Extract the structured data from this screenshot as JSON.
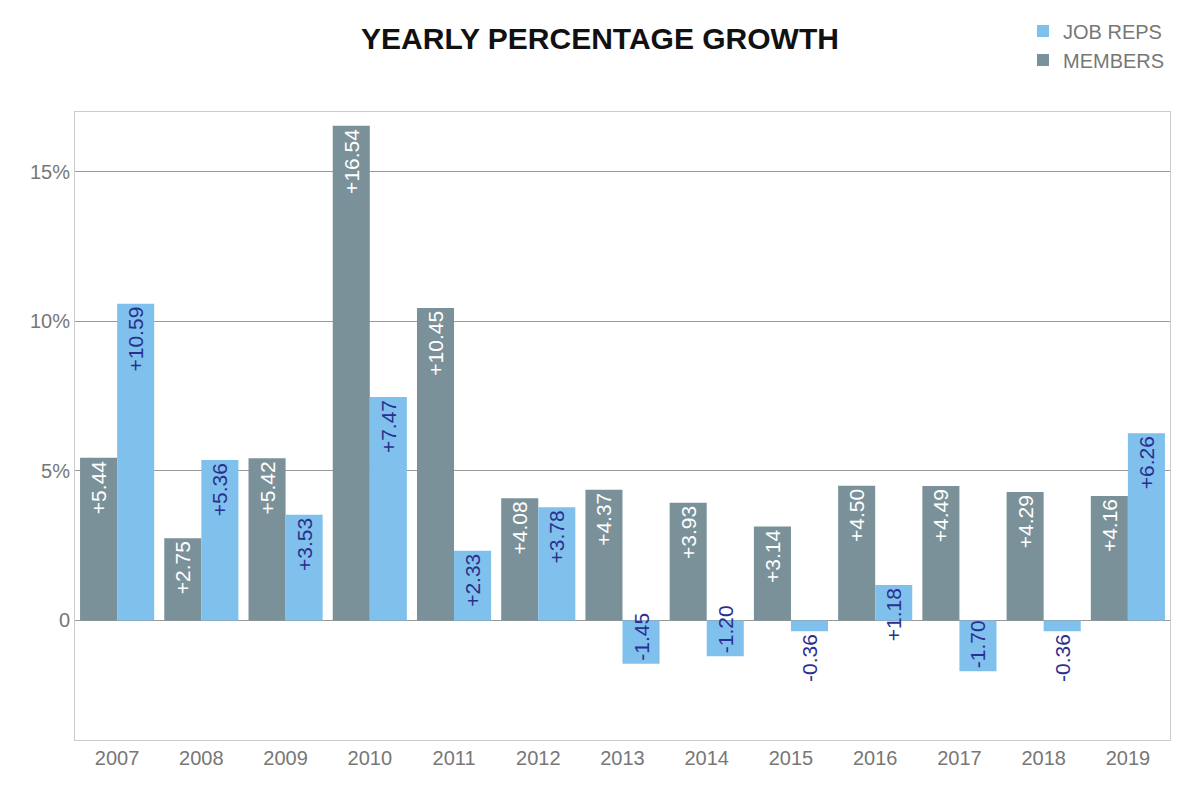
{
  "chart_data": {
    "type": "bar",
    "title": "YEARLY PERCENTAGE GROWTH",
    "categories": [
      "2007",
      "2008",
      "2009",
      "2010",
      "2011",
      "2012",
      "2013",
      "2014",
      "2015",
      "2016",
      "2017",
      "2018",
      "2019"
    ],
    "series": [
      {
        "name": "MEMBERS",
        "color": "#7a9199",
        "values": [
          5.44,
          2.75,
          5.42,
          16.54,
          10.45,
          4.08,
          4.37,
          3.93,
          3.14,
          4.5,
          4.49,
          4.29,
          4.16
        ],
        "value_labels": [
          "+5.44",
          "+2.75",
          "+5.42",
          "+16.54",
          "+10.45",
          "+4.08",
          "+4.37",
          "+3.93",
          "+3.14",
          "+4.50",
          "+4.49",
          "+4.29",
          "+4.16"
        ]
      },
      {
        "name": "JOB REPS",
        "color": "#7fc1ec",
        "values": [
          10.59,
          5.36,
          3.53,
          7.47,
          2.33,
          3.78,
          -1.45,
          -1.2,
          -0.36,
          1.18,
          -1.7,
          -0.36,
          6.26
        ],
        "value_labels": [
          "+10.59",
          "+5.36",
          "+3.53",
          "+7.47",
          "+2.33",
          "+3.78",
          "-1.45",
          "-1.20",
          "-0.36",
          "+1.18",
          "-1.70",
          "-0.36",
          "+6.26"
        ]
      }
    ],
    "ylim": [
      -4,
      17
    ],
    "yticks": [
      0,
      {
        "value": 5,
        "label": "5%"
      },
      {
        "value": 10,
        "label": "10%"
      },
      {
        "value": 15,
        "label": "15%"
      }
    ],
    "grid": true,
    "legend": "top right",
    "data_labels": true
  }
}
